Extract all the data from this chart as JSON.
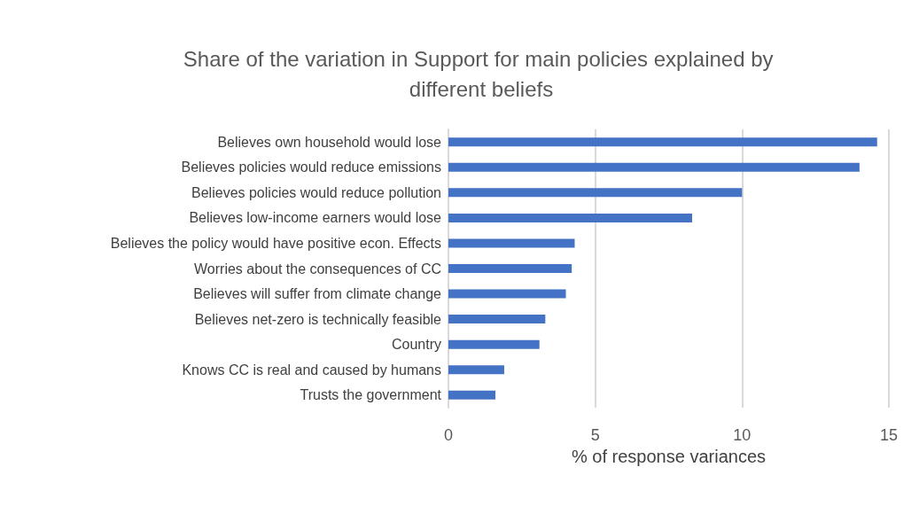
{
  "chart_data": {
    "type": "bar",
    "orientation": "horizontal",
    "title": "Share of the variation in Support for main policies explained by different beliefs",
    "xlabel": "% of response variances",
    "categories": [
      "Believes own household would lose",
      "Believes policies would reduce emissions",
      "Believes policies would reduce pollution",
      "Believes low-income earners would lose",
      "Believes the policy would have positive econ. Effects",
      "Worries about the consequences of CC",
      "Believes will suffer from climate change",
      "Believes net-zero is technically feasible",
      "Country",
      "Knows CC is real and caused by humans",
      "Trusts the government"
    ],
    "values": [
      14.6,
      14.0,
      10.0,
      8.3,
      4.3,
      4.2,
      4.0,
      3.3,
      3.1,
      1.9,
      1.6
    ],
    "color": "#4472c4",
    "xlim": [
      0,
      15
    ],
    "xticks": [
      0,
      5,
      10,
      15
    ],
    "grid": "x"
  }
}
